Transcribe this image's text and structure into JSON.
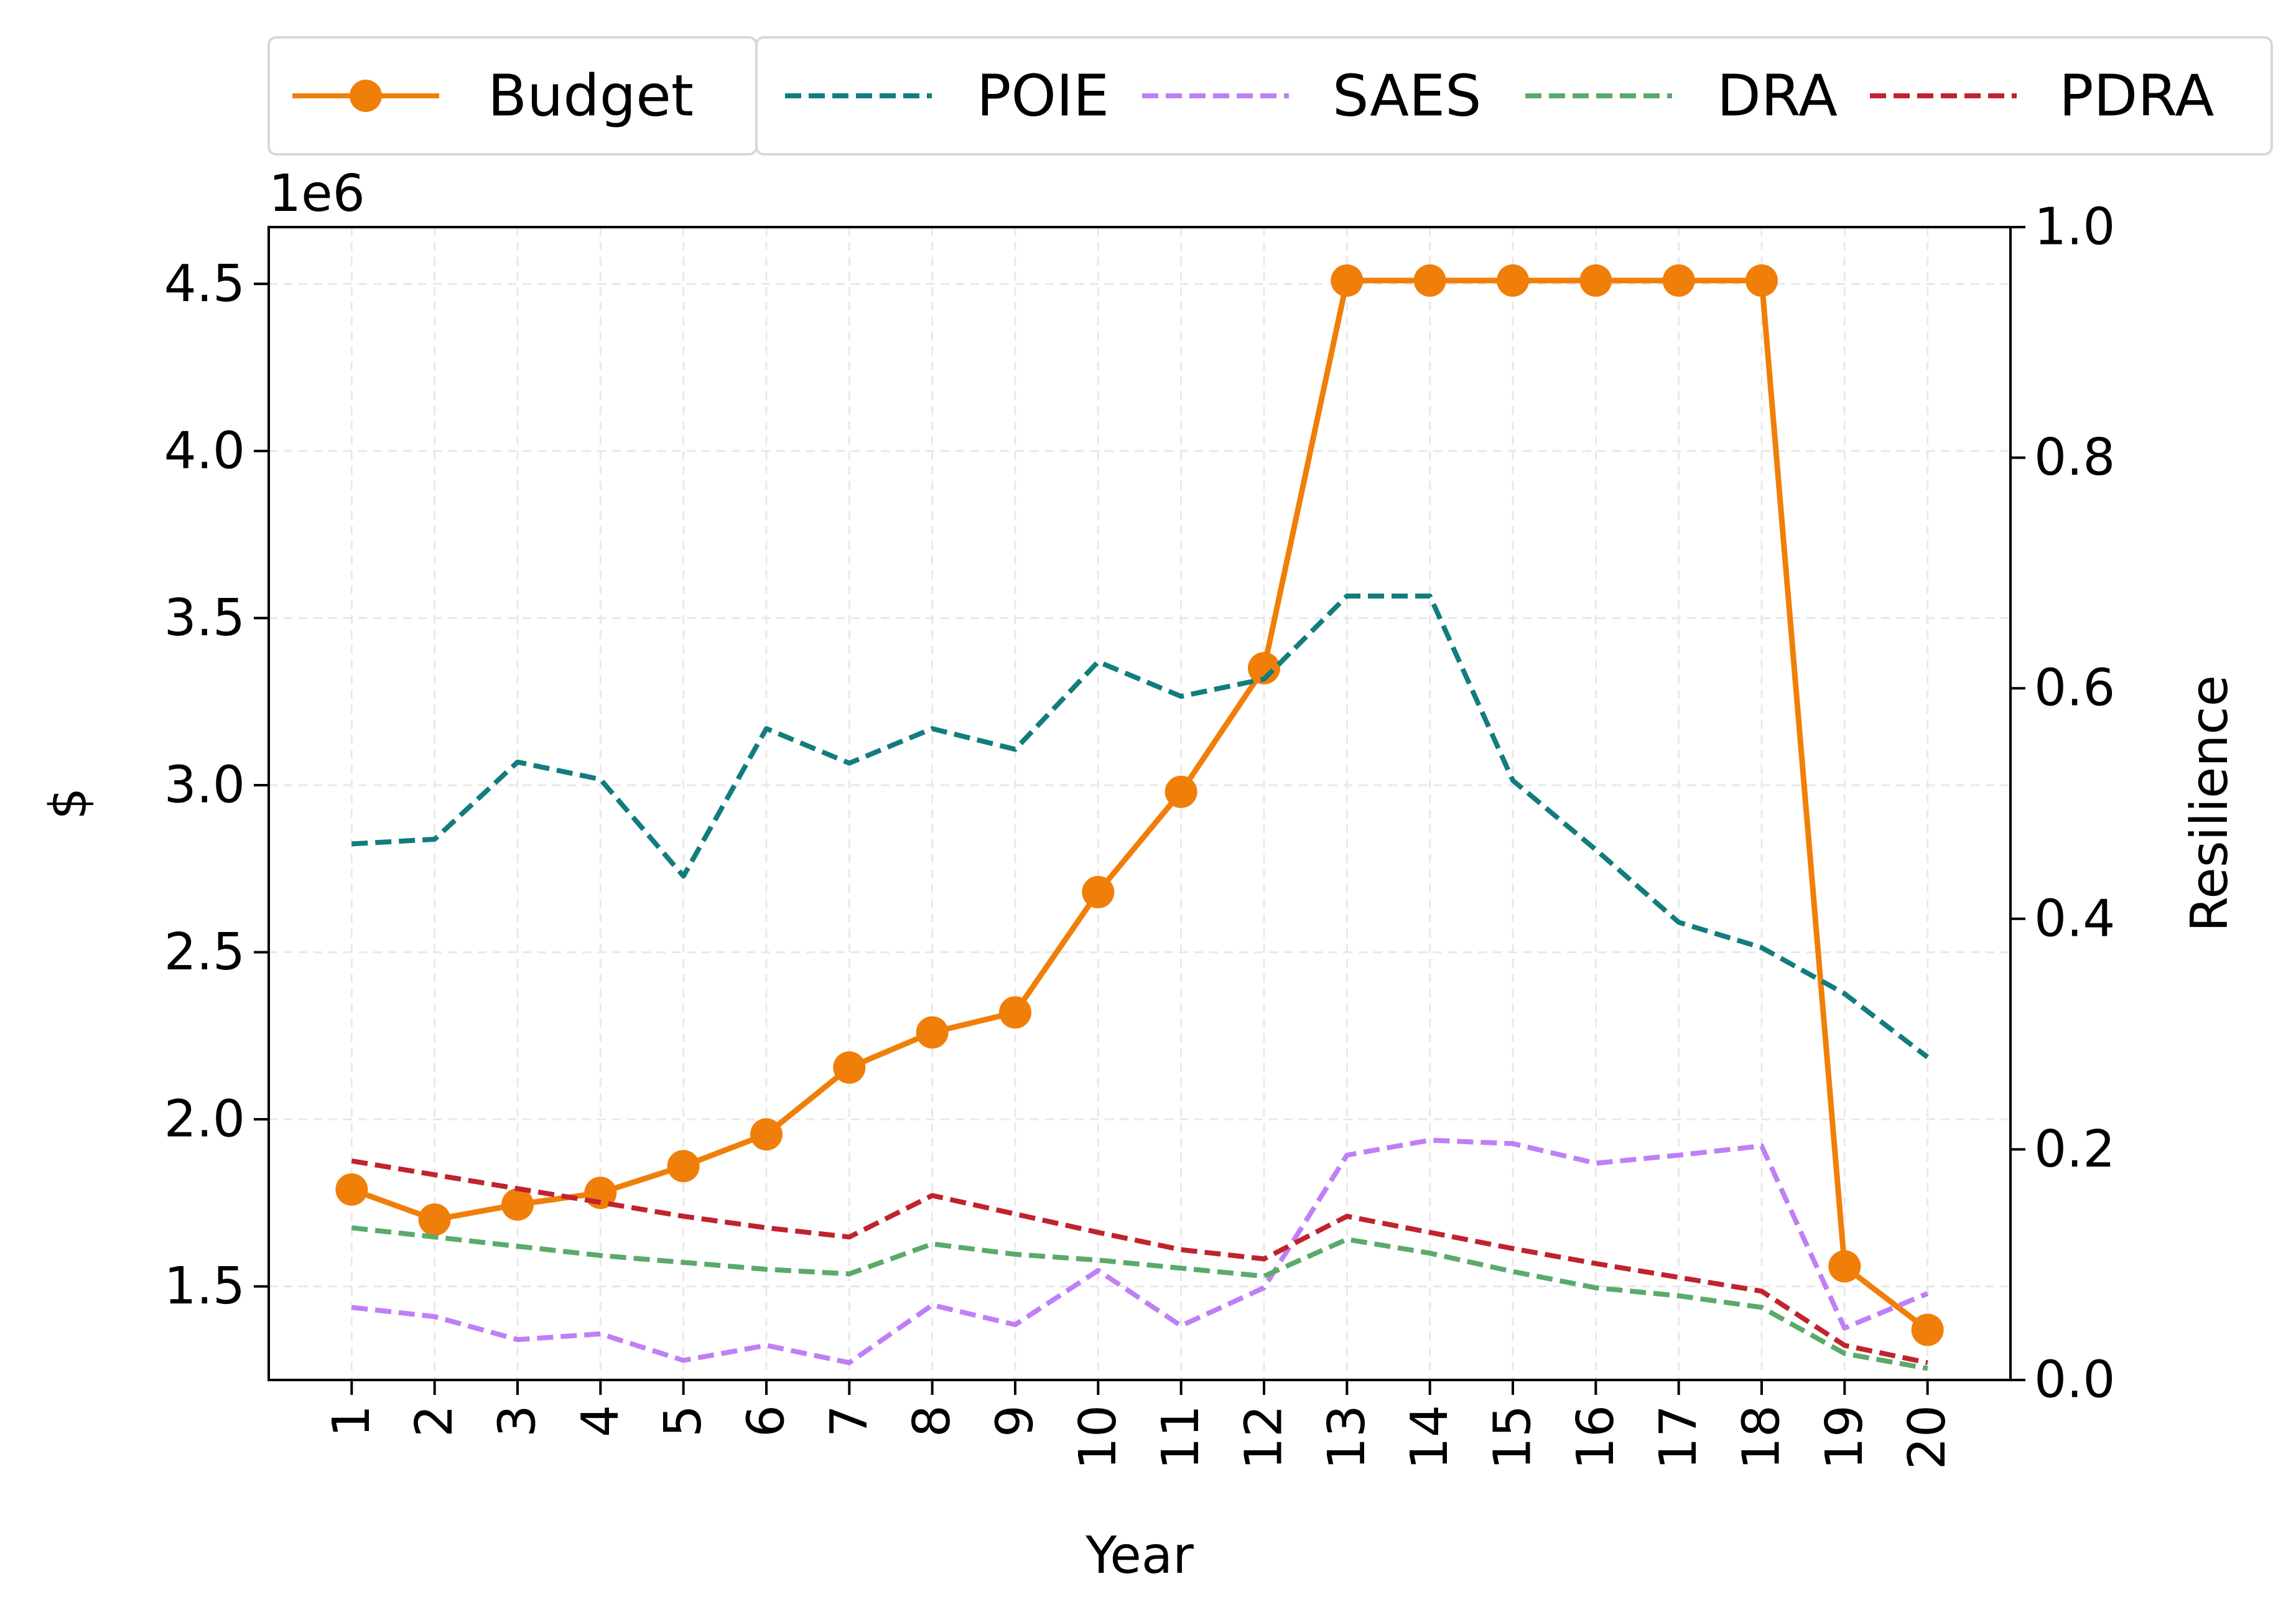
{
  "chart_data": {
    "type": "line",
    "x": [
      1,
      2,
      3,
      4,
      5,
      6,
      7,
      8,
      9,
      10,
      11,
      12,
      13,
      14,
      15,
      16,
      17,
      18,
      19,
      20
    ],
    "x_tick_labels": [
      "1",
      "2",
      "3",
      "4",
      "5",
      "6",
      "7",
      "8",
      "9",
      "10",
      "11",
      "12",
      "13",
      "14",
      "15",
      "16",
      "17",
      "18",
      "19",
      "20"
    ],
    "xlabel": "Year",
    "ylabel_left": "$",
    "ylabel_right": "Resilience",
    "left_axis_multiplier_label": "1e6",
    "ylim_left": [
      1.22,
      4.67
    ],
    "ylim_right": [
      0.0,
      1.0
    ],
    "left_ticks": [
      1.5,
      2.0,
      2.5,
      3.0,
      3.5,
      4.0,
      4.5
    ],
    "left_tick_labels": [
      "1.5",
      "2.0",
      "2.5",
      "3.0",
      "3.5",
      "4.0",
      "4.5"
    ],
    "right_ticks": [
      0.0,
      0.2,
      0.4,
      0.6,
      0.8,
      1.0
    ],
    "right_tick_labels": [
      "0.0",
      "0.2",
      "0.4",
      "0.6",
      "0.8",
      "1.0"
    ],
    "grid": true,
    "legend_placement": "top, outside plot",
    "series": [
      {
        "name": "Budget",
        "axis": "left",
        "style": "solid-marker",
        "color": "#f07f0a",
        "values": [
          1.79,
          1.7,
          1.745,
          1.78,
          1.86,
          1.955,
          2.155,
          2.26,
          2.32,
          2.68,
          2.98,
          3.35,
          4.51,
          4.51,
          4.51,
          4.51,
          4.51,
          4.51,
          1.56,
          1.37
        ]
      },
      {
        "name": "POIE",
        "axis": "right",
        "style": "dashed",
        "color": "#127c7e",
        "values": [
          0.465,
          0.469,
          0.536,
          0.521,
          0.437,
          0.565,
          0.535,
          0.565,
          0.547,
          0.623,
          0.593,
          0.608,
          0.68,
          0.68,
          0.52,
          0.46,
          0.397,
          0.375,
          0.335,
          0.28
        ]
      },
      {
        "name": "SAES",
        "axis": "right",
        "style": "dashed",
        "color": "#bf7ff5",
        "values": [
          0.063,
          0.055,
          0.035,
          0.04,
          0.017,
          0.03,
          0.015,
          0.065,
          0.048,
          0.095,
          0.047,
          0.08,
          0.195,
          0.208,
          0.205,
          0.188,
          0.195,
          0.203,
          0.045,
          0.075
        ]
      },
      {
        "name": "DRA",
        "axis": "right",
        "style": "dashed",
        "color": "#5aaa6a",
        "values": [
          0.132,
          0.124,
          0.116,
          0.108,
          0.102,
          0.096,
          0.092,
          0.118,
          0.109,
          0.104,
          0.097,
          0.09,
          0.122,
          0.11,
          0.094,
          0.08,
          0.073,
          0.063,
          0.023,
          0.01
        ]
      },
      {
        "name": "PDRA",
        "axis": "right",
        "style": "dashed",
        "color": "#c1232e",
        "values": [
          0.19,
          0.178,
          0.166,
          0.154,
          0.142,
          0.132,
          0.124,
          0.16,
          0.144,
          0.128,
          0.113,
          0.105,
          0.142,
          0.128,
          0.114,
          0.101,
          0.089,
          0.077,
          0.03,
          0.015
        ]
      }
    ]
  }
}
